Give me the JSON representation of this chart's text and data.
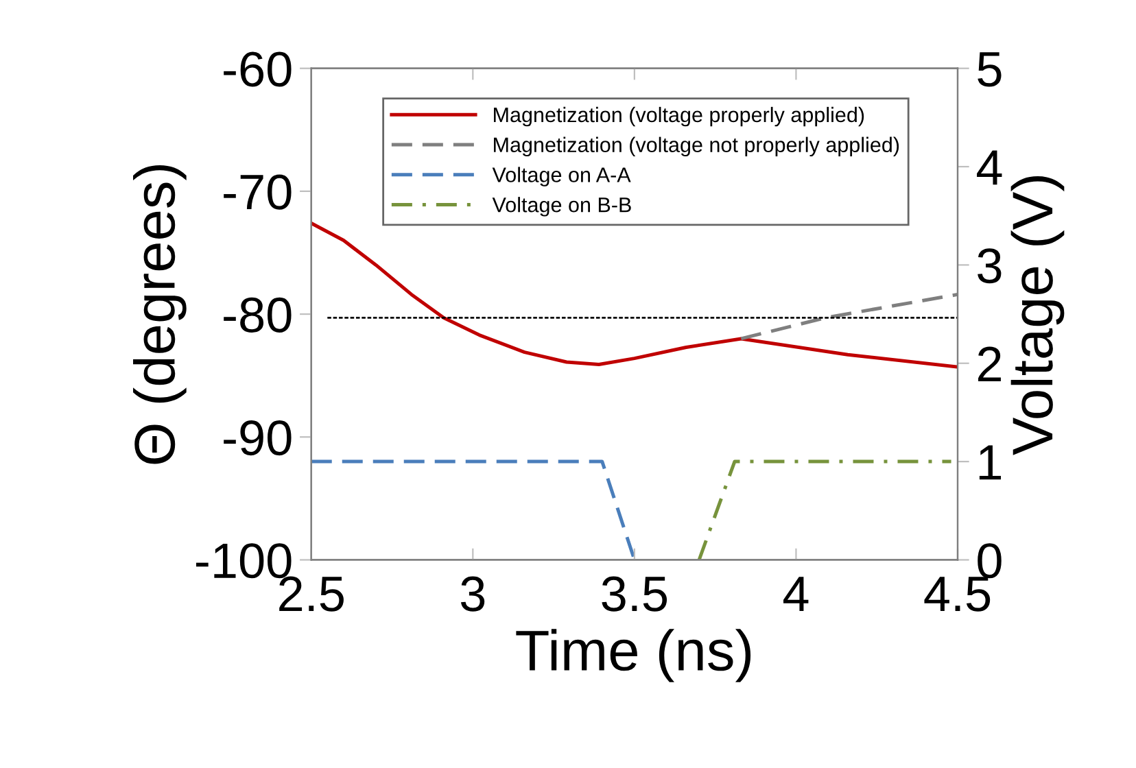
{
  "chart_data": {
    "type": "line",
    "xlabel": "Time (ns)",
    "ylabel": "Θ (degrees)",
    "y2label": "Voltage (V)",
    "xlim": [
      2.5,
      4.5
    ],
    "xticks": [
      2.5,
      3,
      3.5,
      4,
      4.5
    ],
    "ylim": [
      -100,
      -60
    ],
    "yticks": [
      -100,
      -90,
      -80,
      -70,
      -60
    ],
    "y2lim": [
      0,
      5
    ],
    "y2ticks": [
      0,
      1,
      2,
      3,
      4,
      5
    ],
    "grid": false,
    "legend": "top right",
    "marker": "none",
    "series": [
      {
        "name": "Magnetization (voltage properly applied)",
        "color": "#c00000",
        "line_style": "solid",
        "x": [
          2.5,
          2.6,
          2.7,
          2.81,
          2.91,
          3.02,
          3.16,
          3.29,
          3.39,
          3.5,
          3.66,
          3.83,
          4.16,
          4.5
        ],
        "values": [
          -72.6,
          -74.0,
          -76.0,
          -78.4,
          -80.3,
          -81.7,
          -83.1,
          -83.9,
          -84.1,
          -83.6,
          -82.7,
          -82.0,
          -83.3,
          -84.3
        ]
      },
      {
        "name": "Magnetization (voltage not properly applied)",
        "color": "#7f7f7f",
        "line_style": "dashed",
        "x": [
          3.83,
          4.09,
          4.5
        ],
        "values": [
          -82.0,
          -80.3,
          -78.4
        ]
      },
      {
        "name": "Voltage on A-A",
        "color": "#4a7ebb",
        "line_style": "dashed",
        "axis": "y2",
        "x": [
          2.5,
          3.4,
          3.5
        ],
        "values": [
          1,
          1,
          0
        ]
      },
      {
        "name": "Voltage on B-B",
        "color": "#77933c",
        "line_style": "dashdot",
        "axis": "y2",
        "x": [
          3.7,
          3.81,
          4.48
        ],
        "values": [
          0,
          1,
          1
        ]
      },
      {
        "color": "#000000",
        "line_style": "dotted",
        "x": [
          2.55,
          4.5
        ],
        "values": [
          -80.3,
          -80.3
        ]
      }
    ]
  }
}
